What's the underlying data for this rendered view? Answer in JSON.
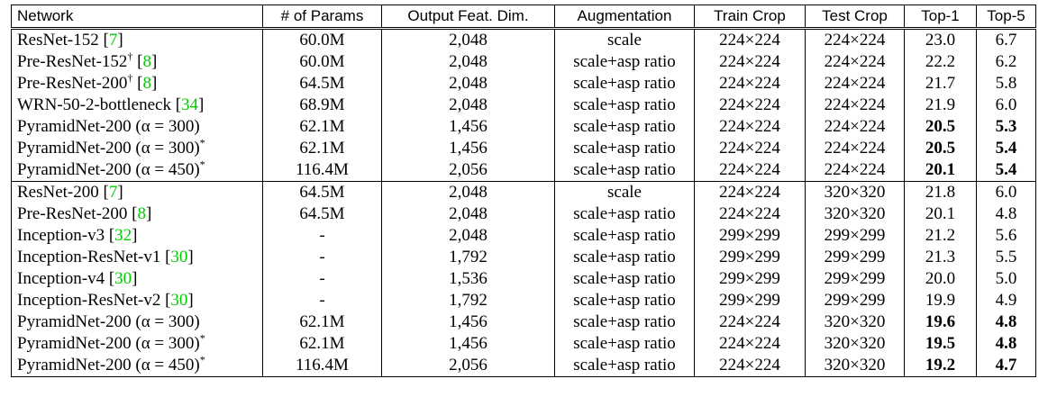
{
  "headers": [
    "Network",
    "# of Params",
    "Output Feat. Dim.",
    "Augmentation",
    "Train Crop",
    "Test Crop",
    "Top-1",
    "Top-5"
  ],
  "group1": [
    {
      "name": "ResNet-152 [",
      "cite": "7",
      "tail": "]",
      "sup": "",
      "params": "60.0M",
      "dim": "2,048",
      "aug": "scale",
      "train": "224×224",
      "test": "224×224",
      "top1": "23.0",
      "top5": "6.7",
      "bold": false
    },
    {
      "name": "Pre-ResNet-152",
      "sup": "†",
      "tail_pre": " [",
      "cite": "8",
      "tail": "]",
      "params": "60.0M",
      "dim": "2,048",
      "aug": "scale+asp ratio",
      "train": "224×224",
      "test": "224×224",
      "top1": "22.2",
      "top5": "6.2",
      "bold": false
    },
    {
      "name": "Pre-ResNet-200",
      "sup": "†",
      "tail_pre": " [",
      "cite": "8",
      "tail": "]",
      "params": "64.5M",
      "dim": "2,048",
      "aug": "scale+asp ratio",
      "train": "224×224",
      "test": "224×224",
      "top1": "21.7",
      "top5": "5.8",
      "bold": false
    },
    {
      "name": "WRN-50-2-bottleneck [",
      "cite": "34",
      "tail": "]",
      "sup": "",
      "params": "68.9M",
      "dim": "2,048",
      "aug": "scale+asp ratio",
      "train": "224×224",
      "test": "224×224",
      "top1": "21.9",
      "top5": "6.0",
      "bold": false
    },
    {
      "name": "PyramidNet-200 (α = 300)",
      "cite": "",
      "tail": "",
      "sup": "",
      "params": "62.1M",
      "dim": "1,456",
      "aug": "scale+asp ratio",
      "train": "224×224",
      "test": "224×224",
      "top1": "20.5",
      "top5": "5.3",
      "bold": true
    },
    {
      "name": "PyramidNet-200 (α = 300)",
      "cite": "",
      "tail": "",
      "sup": "*",
      "params": "62.1M",
      "dim": "1,456",
      "aug": "scale+asp ratio",
      "train": "224×224",
      "test": "224×224",
      "top1": "20.5",
      "top5": "5.4",
      "bold": true
    },
    {
      "name": "PyramidNet-200 (α = 450)",
      "cite": "",
      "tail": "",
      "sup": "*",
      "params": "116.4M",
      "dim": "2,056",
      "aug": "scale+asp ratio",
      "train": "224×224",
      "test": "224×224",
      "top1": "20.1",
      "top5": "5.4",
      "bold": true
    }
  ],
  "group2": [
    {
      "name": "ResNet-200 [",
      "cite": "7",
      "tail": "]",
      "sup": "",
      "params": "64.5M",
      "dim": "2,048",
      "aug": "scale",
      "train": "224×224",
      "test": "320×320",
      "top1": "21.8",
      "top5": "6.0",
      "bold": false
    },
    {
      "name": "Pre-ResNet-200 [",
      "cite": "8",
      "tail": "]",
      "sup": "",
      "params": "64.5M",
      "dim": "2,048",
      "aug": "scale+asp ratio",
      "train": "224×224",
      "test": "320×320",
      "top1": "20.1",
      "top5": "4.8",
      "bold": false
    },
    {
      "name": "Inception-v3 [",
      "cite": "32",
      "tail": "]",
      "sup": "",
      "params": "-",
      "dim": "2,048",
      "aug": "scale+asp ratio",
      "train": "299×299",
      "test": "299×299",
      "top1": "21.2",
      "top5": "5.6",
      "bold": false
    },
    {
      "name": "Inception-ResNet-v1 [",
      "cite": "30",
      "tail": "]",
      "sup": "",
      "params": "-",
      "dim": "1,792",
      "aug": "scale+asp ratio",
      "train": "299×299",
      "test": "299×299",
      "top1": "21.3",
      "top5": "5.5",
      "bold": false
    },
    {
      "name": "Inception-v4 [",
      "cite": "30",
      "tail": "]",
      "sup": "",
      "params": "-",
      "dim": "1,536",
      "aug": "scale+asp ratio",
      "train": "299×299",
      "test": "299×299",
      "top1": "20.0",
      "top5": "5.0",
      "bold": false
    },
    {
      "name": "Inception-ResNet-v2 [",
      "cite": "30",
      "tail": "]",
      "sup": "",
      "params": "-",
      "dim": "1,792",
      "aug": "scale+asp ratio",
      "train": "299×299",
      "test": "299×299",
      "top1": "19.9",
      "top5": "4.9",
      "bold": false
    },
    {
      "name": "PyramidNet-200 (α = 300)",
      "cite": "",
      "tail": "",
      "sup": "",
      "params": "62.1M",
      "dim": "1,456",
      "aug": "scale+asp ratio",
      "train": "224×224",
      "test": "320×320",
      "top1": "19.6",
      "top5": "4.8",
      "bold": true
    },
    {
      "name": "PyramidNet-200 (α = 300)",
      "cite": "",
      "tail": "",
      "sup": "*",
      "params": "62.1M",
      "dim": "1,456",
      "aug": "scale+asp ratio",
      "train": "224×224",
      "test": "320×320",
      "top1": "19.5",
      "top5": "4.8",
      "bold": true
    },
    {
      "name": "PyramidNet-200 (α = 450)",
      "cite": "",
      "tail": "",
      "sup": "*",
      "params": "116.4M",
      "dim": "2,056",
      "aug": "scale+asp ratio",
      "train": "224×224",
      "test": "320×320",
      "top1": "19.2",
      "top5": "4.7",
      "bold": true
    }
  ]
}
